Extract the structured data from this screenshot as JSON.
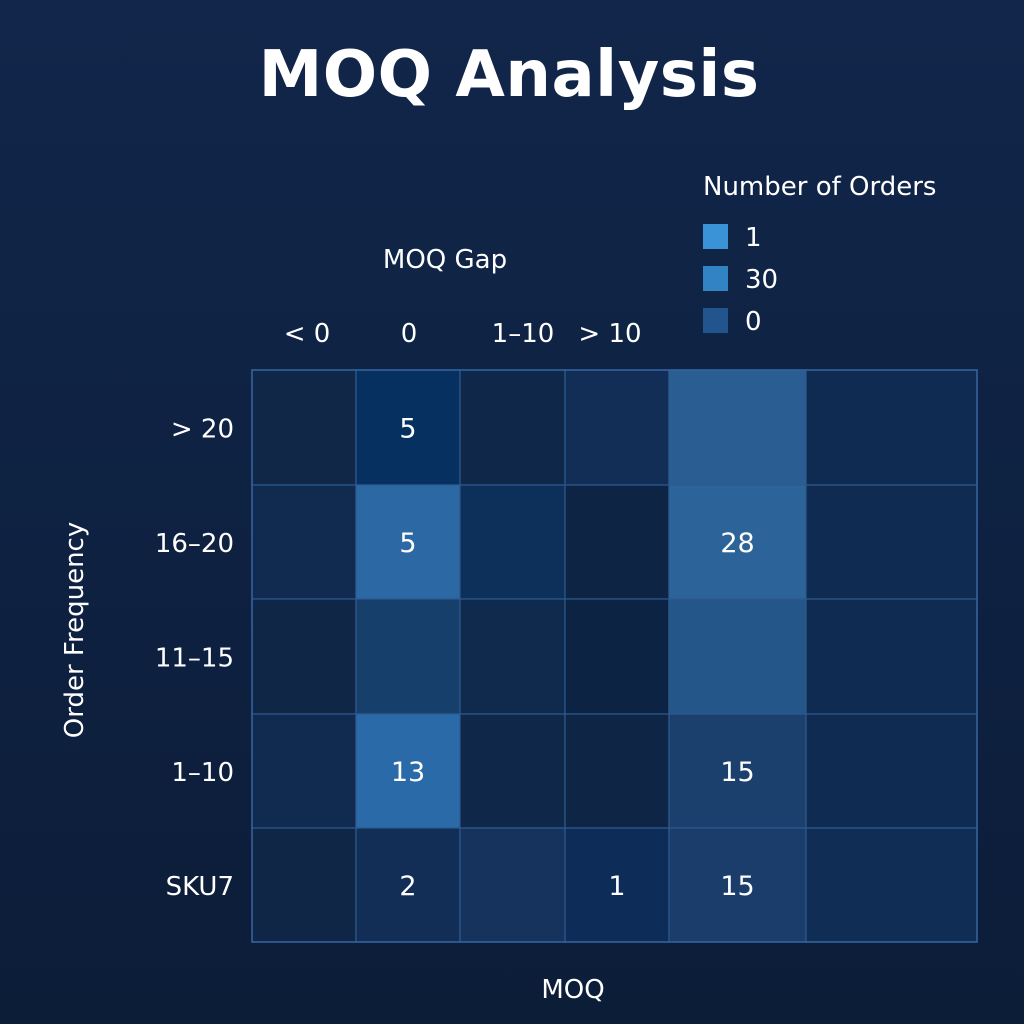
{
  "chart_data": {
    "type": "heatmap",
    "title": "MOQ Analysis",
    "xlabel_top": "MOQ Gap",
    "xlabel_bottom": "MOQ",
    "ylabel": "Order Frequency",
    "x_tick_labels": [
      "< 0",
      "0",
      "1–10",
      "> 10"
    ],
    "rows": [
      "> 20",
      "16–20",
      "11–15",
      "1–10",
      "SKU7"
    ],
    "cells": [
      [
        {
          "color": "#102747",
          "label": ""
        },
        {
          "color": "#06305f",
          "label": "5"
        },
        {
          "color": "#0f2849",
          "label": ""
        },
        {
          "color": "#132e56",
          "label": ""
        },
        {
          "color": "#2a5e93",
          "label": ""
        },
        {
          "color": "#0f2b52",
          "label": ""
        }
      ],
      [
        {
          "color": "#112a4f",
          "label": ""
        },
        {
          "color": "#2b68a4",
          "label": "5"
        },
        {
          "color": "#0c305a",
          "label": ""
        },
        {
          "color": "#0d2445",
          "label": ""
        },
        {
          "color": "#2c6398",
          "label": "28"
        },
        {
          "color": "#0f2b52",
          "label": ""
        }
      ],
      [
        {
          "color": "#0f2646",
          "label": ""
        },
        {
          "color": "#163f6b",
          "label": ""
        },
        {
          "color": "#0f2a4d",
          "label": ""
        },
        {
          "color": "#0d2343",
          "label": ""
        },
        {
          "color": "#24568a",
          "label": ""
        },
        {
          "color": "#0f2b52",
          "label": ""
        }
      ],
      [
        {
          "color": "#112a4f",
          "label": ""
        },
        {
          "color": "#2a6aa9",
          "label": "13"
        },
        {
          "color": "#0f2849",
          "label": ""
        },
        {
          "color": "#0e2545",
          "label": ""
        },
        {
          "color": "#1c406d",
          "label": "15"
        },
        {
          "color": "#0f2b52",
          "label": ""
        }
      ],
      [
        {
          "color": "#0f2646",
          "label": ""
        },
        {
          "color": "#132e56",
          "label": "2"
        },
        {
          "color": "#15335c",
          "label": ""
        },
        {
          "color": "#0d2c58",
          "label": "1"
        },
        {
          "color": "#1a3d6b",
          "label": "15"
        },
        {
          "color": "#102d55",
          "label": ""
        }
      ]
    ],
    "legend": {
      "title": "Number of Orders",
      "placement": "top-right",
      "items": [
        {
          "label": "1",
          "color": "#3a93d6"
        },
        {
          "label": "30",
          "color": "#3283c4"
        },
        {
          "label": "0",
          "color": "#22558d"
        }
      ]
    }
  }
}
